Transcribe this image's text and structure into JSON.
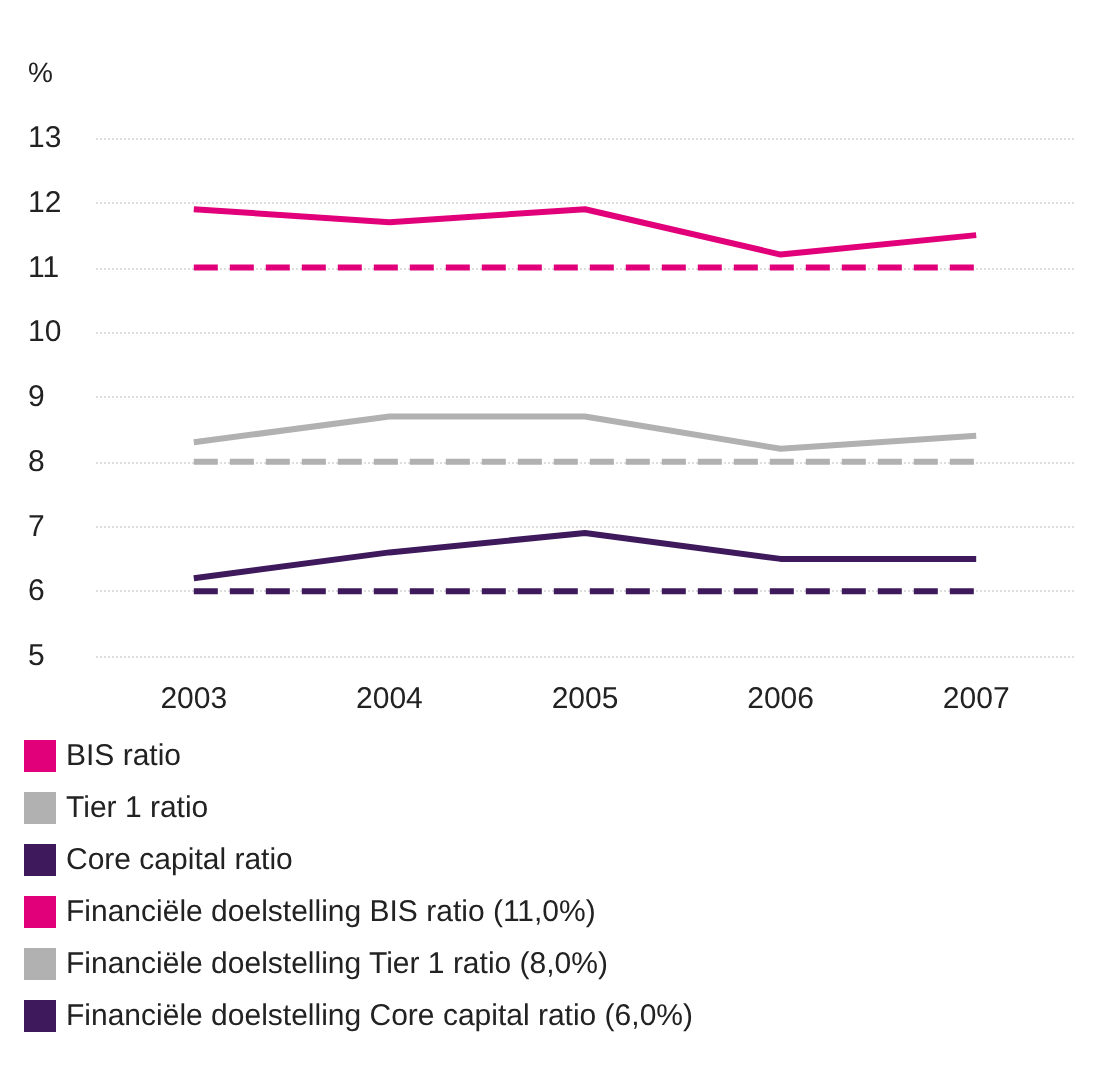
{
  "chart_data": {
    "type": "line",
    "ylabel": "%",
    "categories": [
      "2003",
      "2004",
      "2005",
      "2006",
      "2007"
    ],
    "series": [
      {
        "name": "BIS ratio",
        "color": "#e2007a",
        "values": [
          11.9,
          11.7,
          11.9,
          11.2,
          11.5
        ]
      },
      {
        "name": "Tier 1 ratio",
        "color": "#b1b1b1",
        "values": [
          8.3,
          8.7,
          8.7,
          8.2,
          8.4
        ]
      },
      {
        "name": "Core capital ratio",
        "color": "#3e1a5c",
        "values": [
          6.2,
          6.6,
          6.9,
          6.5,
          6.5
        ]
      },
      {
        "name": "Financiële doelstelling BIS ratio (11,0%)",
        "color": "#e2007a",
        "line_style": "dashed",
        "values": [
          11,
          11,
          11,
          11,
          11
        ]
      },
      {
        "name": "Financiële doelstelling Tier 1 ratio (8,0%)",
        "color": "#b1b1b1",
        "line_style": "dashed",
        "values": [
          8,
          8,
          8,
          8,
          8
        ]
      },
      {
        "name": "Financiële doelstelling Core capital ratio (6,0%)",
        "color": "#3e1a5c",
        "line_style": "dashed",
        "values": [
          6,
          6,
          6,
          6,
          6
        ]
      }
    ],
    "ylim": [
      5,
      13
    ],
    "yticks": [
      5,
      6,
      7,
      8,
      9,
      10,
      11,
      12,
      13
    ],
    "grid": "y",
    "legend": "bottom",
    "marker": "none"
  }
}
